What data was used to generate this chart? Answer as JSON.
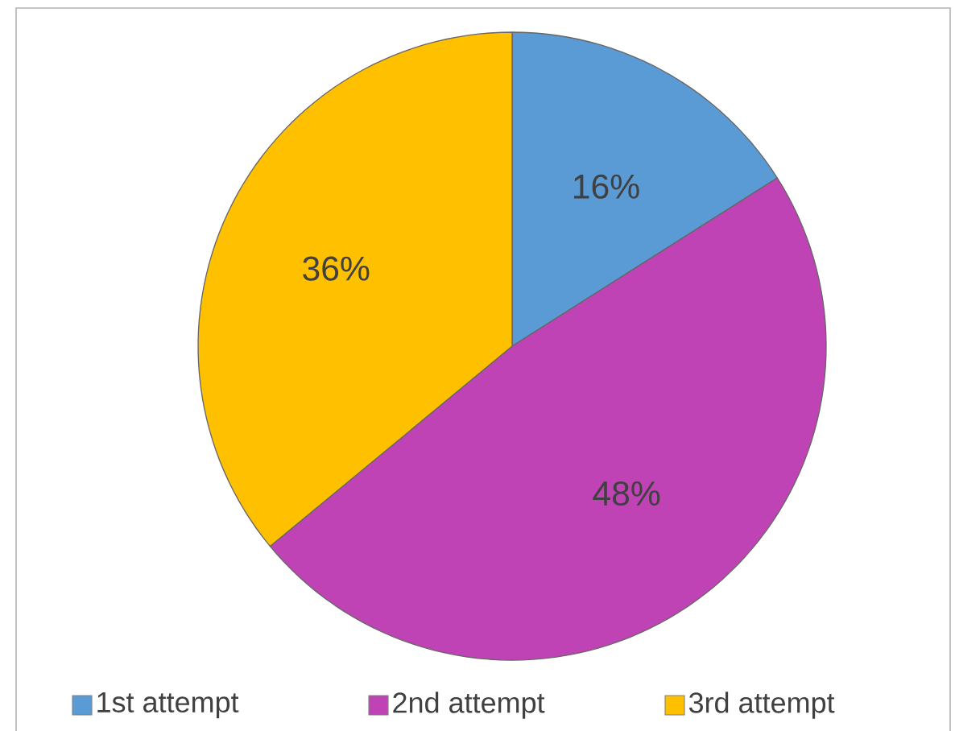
{
  "chart_data": {
    "type": "pie",
    "categories": [
      "1st attempt",
      "2nd attempt",
      "3rd attempt"
    ],
    "values": [
      16,
      48,
      36
    ],
    "colors": [
      "#5b9bd5",
      "#c043b5",
      "#ffc000"
    ],
    "value_labels": [
      "16%",
      "48%",
      "36%"
    ],
    "legend": "bottom"
  }
}
